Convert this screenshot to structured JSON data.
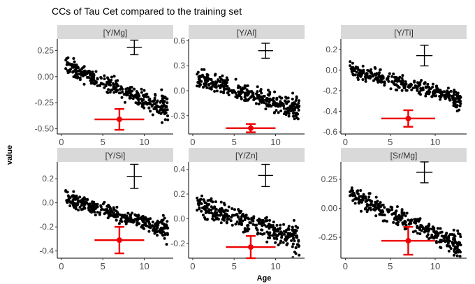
{
  "figure": {
    "title": "CCs of Tau Cet compared to the training set",
    "xlabel": "Age",
    "ylabel": "value"
  },
  "colors": {
    "points": "#000000",
    "tau_cet": "#ee0000",
    "strip": "#d9d9d9",
    "error_bar": "#000000"
  },
  "chart_data": [
    {
      "type": "scatter",
      "panel": "[Y/Mg]",
      "xlim": [
        -0.5,
        13.5
      ],
      "ylim": [
        -0.55,
        0.36
      ],
      "x_ticks": [
        0,
        5,
        10
      ],
      "y_ticks": [
        "-0.50",
        "-0.25",
        "0.00",
        "0.25"
      ],
      "y_tick_values": [
        -0.5,
        -0.25,
        0,
        0.25
      ],
      "trend": {
        "x_start": 0.5,
        "y_start": 0.11,
        "x_end": 13,
        "y_end": -0.33,
        "spread": 0.065
      },
      "tau_cet": {
        "x": 7,
        "y": -0.41,
        "x_err": 3,
        "y_err": 0.1
      },
      "typical_error": {
        "x": 8.8,
        "y": 0.28,
        "x_err": 0.9,
        "y_err": 0.07
      }
    },
    {
      "type": "scatter",
      "panel": "[Y/Al]",
      "xlim": [
        -0.5,
        13.5
      ],
      "ylim": [
        -0.52,
        0.62
      ],
      "x_ticks": [
        0,
        5,
        10
      ],
      "y_ticks": [
        "-0.3",
        "0.0",
        "0.3",
        "0.6"
      ],
      "y_tick_values": [
        -0.3,
        0,
        0.3,
        0.6
      ],
      "trend": {
        "x_start": 0.5,
        "y_start": 0.16,
        "x_end": 13,
        "y_end": -0.23,
        "spread": 0.09
      },
      "tau_cet": {
        "x": 7,
        "y": -0.45,
        "x_err": 3,
        "y_err": 0.05
      },
      "typical_error": {
        "x": 8.8,
        "y": 0.48,
        "x_err": 0.9,
        "y_err": 0.09
      }
    },
    {
      "type": "scatter",
      "panel": "[Y/Ti]",
      "xlim": [
        -0.5,
        13.5
      ],
      "ylim": [
        -0.62,
        0.3
      ],
      "x_ticks": [
        0,
        5,
        10
      ],
      "y_ticks": [
        "-0.6",
        "-0.4",
        "-0.2",
        "0.0",
        "0.2"
      ],
      "y_tick_values": [
        -0.6,
        -0.4,
        -0.2,
        0,
        0.2
      ],
      "trend": {
        "x_start": 0.5,
        "y_start": 0.01,
        "x_end": 13,
        "y_end": -0.29,
        "spread": 0.055
      },
      "tau_cet": {
        "x": 7,
        "y": -0.47,
        "x_err": 3,
        "y_err": 0.08
      },
      "typical_error": {
        "x": 8.8,
        "y": 0.14,
        "x_err": 0.9,
        "y_err": 0.1
      }
    },
    {
      "type": "scatter",
      "panel": "[Y/Si]",
      "xlim": [
        -0.5,
        13.5
      ],
      "ylim": [
        -0.46,
        0.34
      ],
      "x_ticks": [
        0,
        5,
        10
      ],
      "y_ticks": [
        "-0.4",
        "-0.2",
        "0.0",
        "0.2"
      ],
      "y_tick_values": [
        -0.4,
        -0.2,
        0,
        0.2
      ],
      "trend": {
        "x_start": 0.5,
        "y_start": 0.04,
        "x_end": 13,
        "y_end": -0.23,
        "spread": 0.055
      },
      "tau_cet": {
        "x": 7,
        "y": -0.31,
        "x_err": 3,
        "y_err": 0.11
      },
      "typical_error": {
        "x": 8.8,
        "y": 0.22,
        "x_err": 0.9,
        "y_err": 0.1
      }
    },
    {
      "type": "scatter",
      "panel": "[Y/Zn]",
      "xlim": [
        -0.5,
        13.5
      ],
      "ylim": [
        -0.32,
        0.46
      ],
      "x_ticks": [
        0,
        5,
        10
      ],
      "y_ticks": [
        "-0.2",
        "0.0",
        "0.2",
        "0.4"
      ],
      "y_tick_values": [
        -0.2,
        0,
        0.2,
        0.4
      ],
      "trend": {
        "x_start": 0.5,
        "y_start": 0.12,
        "x_end": 13,
        "y_end": -0.18,
        "spread": 0.07
      },
      "tau_cet": {
        "x": 7,
        "y": -0.23,
        "x_err": 3,
        "y_err": 0.09
      },
      "typical_error": {
        "x": 8.8,
        "y": 0.35,
        "x_err": 0.9,
        "y_err": 0.09
      }
    },
    {
      "type": "scatter",
      "panel": "[Sr/Mg]",
      "xlim": [
        -0.5,
        13.5
      ],
      "ylim": [
        -0.43,
        0.4
      ],
      "x_ticks": [
        0,
        5,
        10
      ],
      "y_ticks": [
        "-0.25",
        "0.00",
        "0.25"
      ],
      "y_tick_values": [
        -0.25,
        0,
        0.25
      ],
      "trend": {
        "x_start": 0.5,
        "y_start": 0.12,
        "x_end": 13,
        "y_end": -0.33,
        "spread": 0.06
      },
      "tau_cet": {
        "x": 7,
        "y": -0.28,
        "x_err": 3,
        "y_err": 0.12
      },
      "typical_error": {
        "x": 8.8,
        "y": 0.31,
        "x_err": 0.9,
        "y_err": 0.09
      }
    }
  ]
}
